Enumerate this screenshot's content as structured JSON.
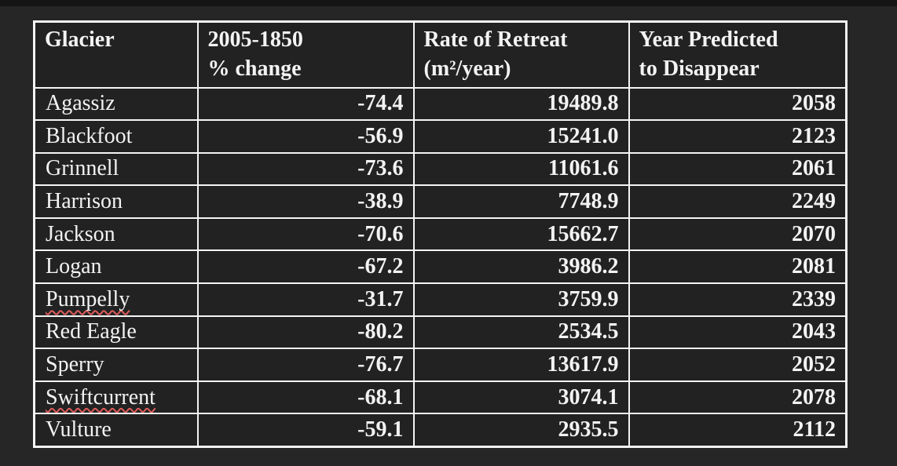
{
  "window": {
    "background_color": "#262626",
    "top_strip_color": "#151515"
  },
  "table": {
    "colors": {
      "border": "#f5f5f5",
      "text": "#f3f3f3",
      "cell_background": "#222222",
      "spellcheck_underline": "#e05c5c"
    },
    "headers": {
      "glacier": "Glacier",
      "pct_change_line1": "2005-1850",
      "pct_change_line2": "% change",
      "rate_line1": "Rate of Retreat",
      "rate_line2": "(m²/year)",
      "year_line1": "Year Predicted",
      "year_line2": "to Disappear"
    },
    "rows": [
      {
        "glacier": "Agassiz",
        "pct_change": "-74.4",
        "rate": "19489.8",
        "year": "2058"
      },
      {
        "glacier": "Blackfoot",
        "pct_change": "-56.9",
        "rate": "15241.0",
        "year": "2123"
      },
      {
        "glacier": "Grinnell",
        "pct_change": "-73.6",
        "rate": "11061.6",
        "year": "2061"
      },
      {
        "glacier": "Harrison",
        "pct_change": "-38.9",
        "rate": "7748.9",
        "year": "2249"
      },
      {
        "glacier": "Jackson",
        "pct_change": "-70.6",
        "rate": "15662.7",
        "year": "2070"
      },
      {
        "glacier": "Logan",
        "pct_change": "-67.2",
        "rate": "3986.2",
        "year": "2081"
      },
      {
        "glacier": "Pumpelly",
        "pct_change": "-31.7",
        "rate": "3759.9",
        "year": "2339"
      },
      {
        "glacier": "Red Eagle",
        "pct_change": "-80.2",
        "rate": "2534.5",
        "year": "2043"
      },
      {
        "glacier": "Sperry",
        "pct_change": "-76.7",
        "rate": "13617.9",
        "year": "2052"
      },
      {
        "glacier": "Swiftcurrent",
        "pct_change": "-68.1",
        "rate": "3074.1",
        "year": "2078"
      },
      {
        "glacier": "Vulture",
        "pct_change": "-59.1",
        "rate": "2935.5",
        "year": "2112"
      }
    ]
  }
}
